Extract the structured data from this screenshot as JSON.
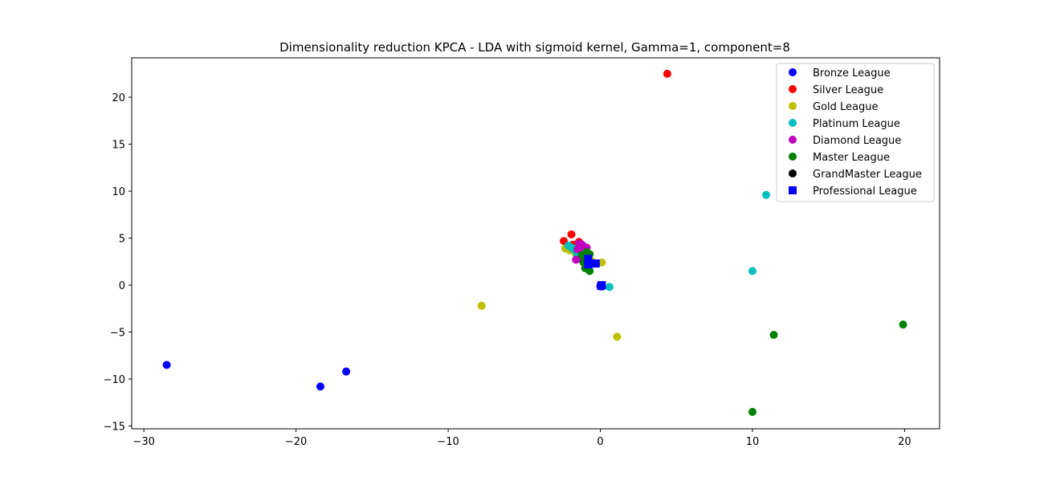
{
  "chart_data": {
    "type": "scatter",
    "title": "Dimensionality reduction KPCA - LDA with sigmoid kernel, Gamma=1, component=8",
    "xlabel": "",
    "ylabel": "",
    "xlim": [
      -30.8,
      22.3
    ],
    "ylim": [
      -15.3,
      24.2
    ],
    "xticks": [
      -30,
      -20,
      -10,
      0,
      10,
      20
    ],
    "yticks": [
      -15,
      -10,
      -5,
      0,
      5,
      10,
      15,
      20
    ],
    "grid": false,
    "legend_position": "top-right",
    "series": [
      {
        "name": "Bronze League",
        "color": "#0000ff",
        "marker": "circle",
        "points": [
          [
            -28.5,
            -8.5
          ],
          [
            -18.4,
            -10.8
          ],
          [
            -16.7,
            -9.2
          ],
          [
            0.0,
            -0.1
          ],
          [
            0.05,
            -0.15
          ],
          [
            0.1,
            -0.05
          ]
        ]
      },
      {
        "name": "Silver League",
        "color": "#ff0000",
        "marker": "circle",
        "points": [
          [
            4.4,
            22.5
          ],
          [
            -1.9,
            5.4
          ],
          [
            -2.4,
            4.7
          ],
          [
            -1.4,
            4.6
          ],
          [
            -1.8,
            4.3
          ],
          [
            -1.0,
            3.9
          ],
          [
            -1.5,
            3.5
          ]
        ]
      },
      {
        "name": "Gold League",
        "color": "#bfbf00",
        "marker": "circle",
        "points": [
          [
            -7.8,
            -2.2
          ],
          [
            1.1,
            -5.5
          ],
          [
            -2.3,
            3.9
          ],
          [
            -2.0,
            3.7
          ],
          [
            0.1,
            2.4
          ],
          [
            -1.6,
            3.3
          ],
          [
            -1.2,
            2.9
          ],
          [
            -0.6,
            2.6
          ]
        ]
      },
      {
        "name": "Platinum League",
        "color": "#00bfbf",
        "marker": "circle",
        "points": [
          [
            10.9,
            9.6
          ],
          [
            10.0,
            1.5
          ],
          [
            0.6,
            -0.2
          ],
          [
            -2.1,
            4.2
          ],
          [
            -1.8,
            3.9
          ],
          [
            -1.6,
            3.6
          ],
          [
            -1.5,
            3.2
          ],
          [
            -1.3,
            3.0
          ],
          [
            -1.9,
            4.0
          ]
        ]
      },
      {
        "name": "Diamond League",
        "color": "#bf00bf",
        "marker": "circle",
        "points": [
          [
            -1.4,
            4.4
          ],
          [
            -1.2,
            4.3
          ],
          [
            -1.1,
            4.1
          ],
          [
            -0.9,
            4.0
          ],
          [
            -1.5,
            3.8
          ],
          [
            -1.3,
            2.8
          ],
          [
            -1.6,
            2.7
          ],
          [
            -1.0,
            3.6
          ]
        ]
      },
      {
        "name": "Master League",
        "color": "#008000",
        "marker": "circle",
        "points": [
          [
            19.9,
            -4.2
          ],
          [
            11.4,
            -5.3
          ],
          [
            10.0,
            -13.5
          ],
          [
            -0.7,
            1.5
          ],
          [
            -0.9,
            2.0
          ],
          [
            -1.1,
            2.4
          ],
          [
            -0.8,
            2.8
          ],
          [
            -1.2,
            3.2
          ],
          [
            -0.9,
            3.5
          ],
          [
            -0.7,
            3.3
          ],
          [
            -1.0,
            1.8
          ]
        ]
      },
      {
        "name": "GrandMaster League",
        "color": "#000000",
        "marker": "circle",
        "points": [
          [
            -0.8,
            2.5
          ]
        ]
      },
      {
        "name": "Professional League",
        "color": "#0000ff",
        "marker": "square",
        "points": [
          [
            -0.8,
            2.8
          ],
          [
            -0.6,
            2.3
          ],
          [
            -0.3,
            2.3
          ],
          [
            -0.8,
            2.2
          ],
          [
            0.05,
            -0.1
          ],
          [
            0.1,
            0.0
          ]
        ]
      }
    ]
  }
}
